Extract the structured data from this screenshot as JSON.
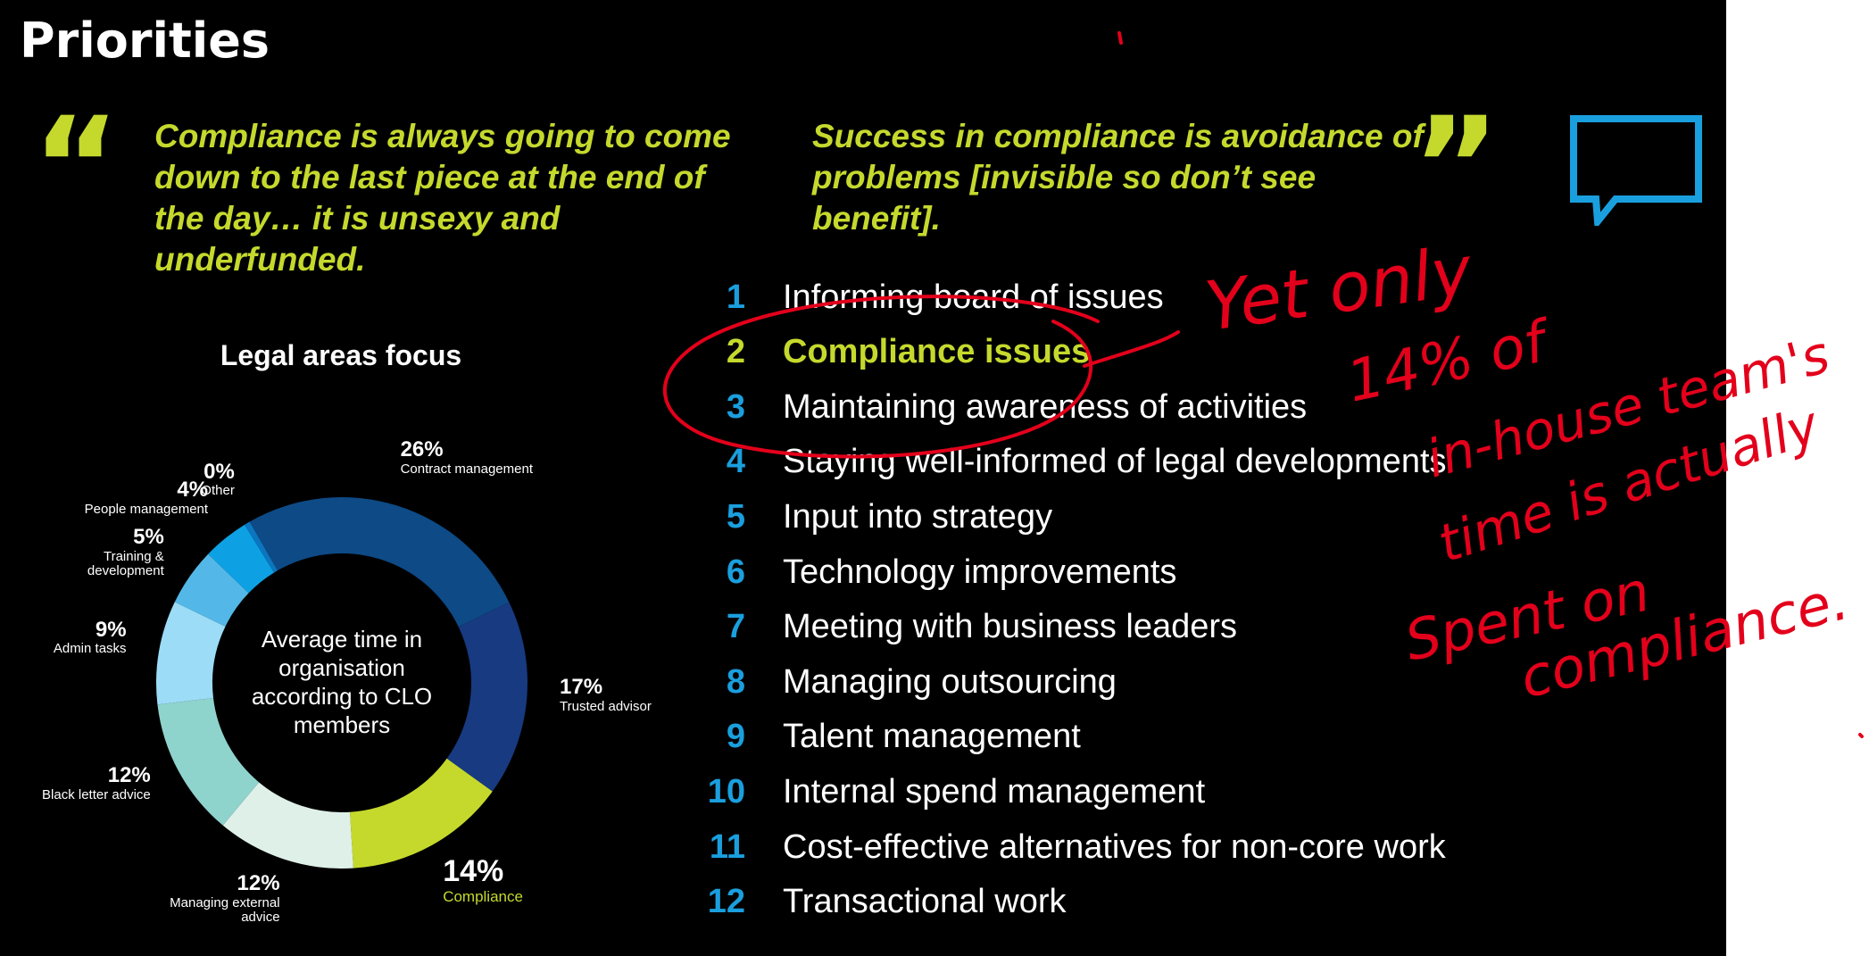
{
  "slide": {
    "title": "Priorities",
    "quote_left": "Compliance is always going to come down to the last piece at the end of the day… it is unsexy and underfunded.",
    "quote_right": "Success in compliance is avoidance of problems [invisible so don’t see benefit].",
    "quote_open_mark": "“",
    "quote_close_mark": "”",
    "accent_color": "#c5d92d",
    "number_color": "#1a9fde"
  },
  "chart_data": {
    "type": "pie",
    "title": "Legal areas focus",
    "center_label": "Average time in organisation according to CLO members",
    "slices": [
      {
        "label": "Contract management",
        "pct_label": "26%",
        "value": 26,
        "color": "#0d4a86"
      },
      {
        "label": "Trusted advisor",
        "pct_label": "17%",
        "value": 17,
        "color": "#173a80"
      },
      {
        "label": "Compliance",
        "pct_label": "14%",
        "value": 14,
        "color": "#c5d92d"
      },
      {
        "label": "Managing external advice",
        "pct_label": "12%",
        "value": 12,
        "color": "#dff0e8"
      },
      {
        "label": "Black letter advice",
        "pct_label": "12%",
        "value": 12,
        "color": "#8fd3cd"
      },
      {
        "label": "Admin tasks",
        "pct_label": "9%",
        "value": 9,
        "color": "#9cdcf6"
      },
      {
        "label": "Training & development",
        "pct_label": "5%",
        "value": 5,
        "color": "#53b8e8"
      },
      {
        "label": "People management",
        "pct_label": "4%",
        "value": 4,
        "color": "#0da1e4"
      },
      {
        "label": "Other",
        "pct_label": "0%",
        "value": 0.5,
        "color": "#0b76bf"
      }
    ]
  },
  "priorities": [
    {
      "num": "1",
      "text": "Informing board of issues"
    },
    {
      "num": "2",
      "text": "Compliance issues"
    },
    {
      "num": "3",
      "text": "Maintaining awareness of activities"
    },
    {
      "num": "4",
      "text": "Staying well-informed of legal developments"
    },
    {
      "num": "5",
      "text": "Input into strategy"
    },
    {
      "num": "6",
      "text": "Technology improvements"
    },
    {
      "num": "7",
      "text": "Meeting with business leaders"
    },
    {
      "num": "8",
      "text": "Managing outsourcing"
    },
    {
      "num": "9",
      "text": "Talent management"
    },
    {
      "num": "10",
      "text": "Internal spend management"
    },
    {
      "num": "11",
      "text": "Cost-effective alternatives for non-core work"
    },
    {
      "num": "12",
      "text": "Transactional work"
    }
  ],
  "annotation": {
    "text_lines": [
      "Yet only",
      "14% of",
      "in-house team's",
      "time is actually",
      "Spent on",
      "compliance."
    ],
    "ink_color": "#e3001b"
  }
}
